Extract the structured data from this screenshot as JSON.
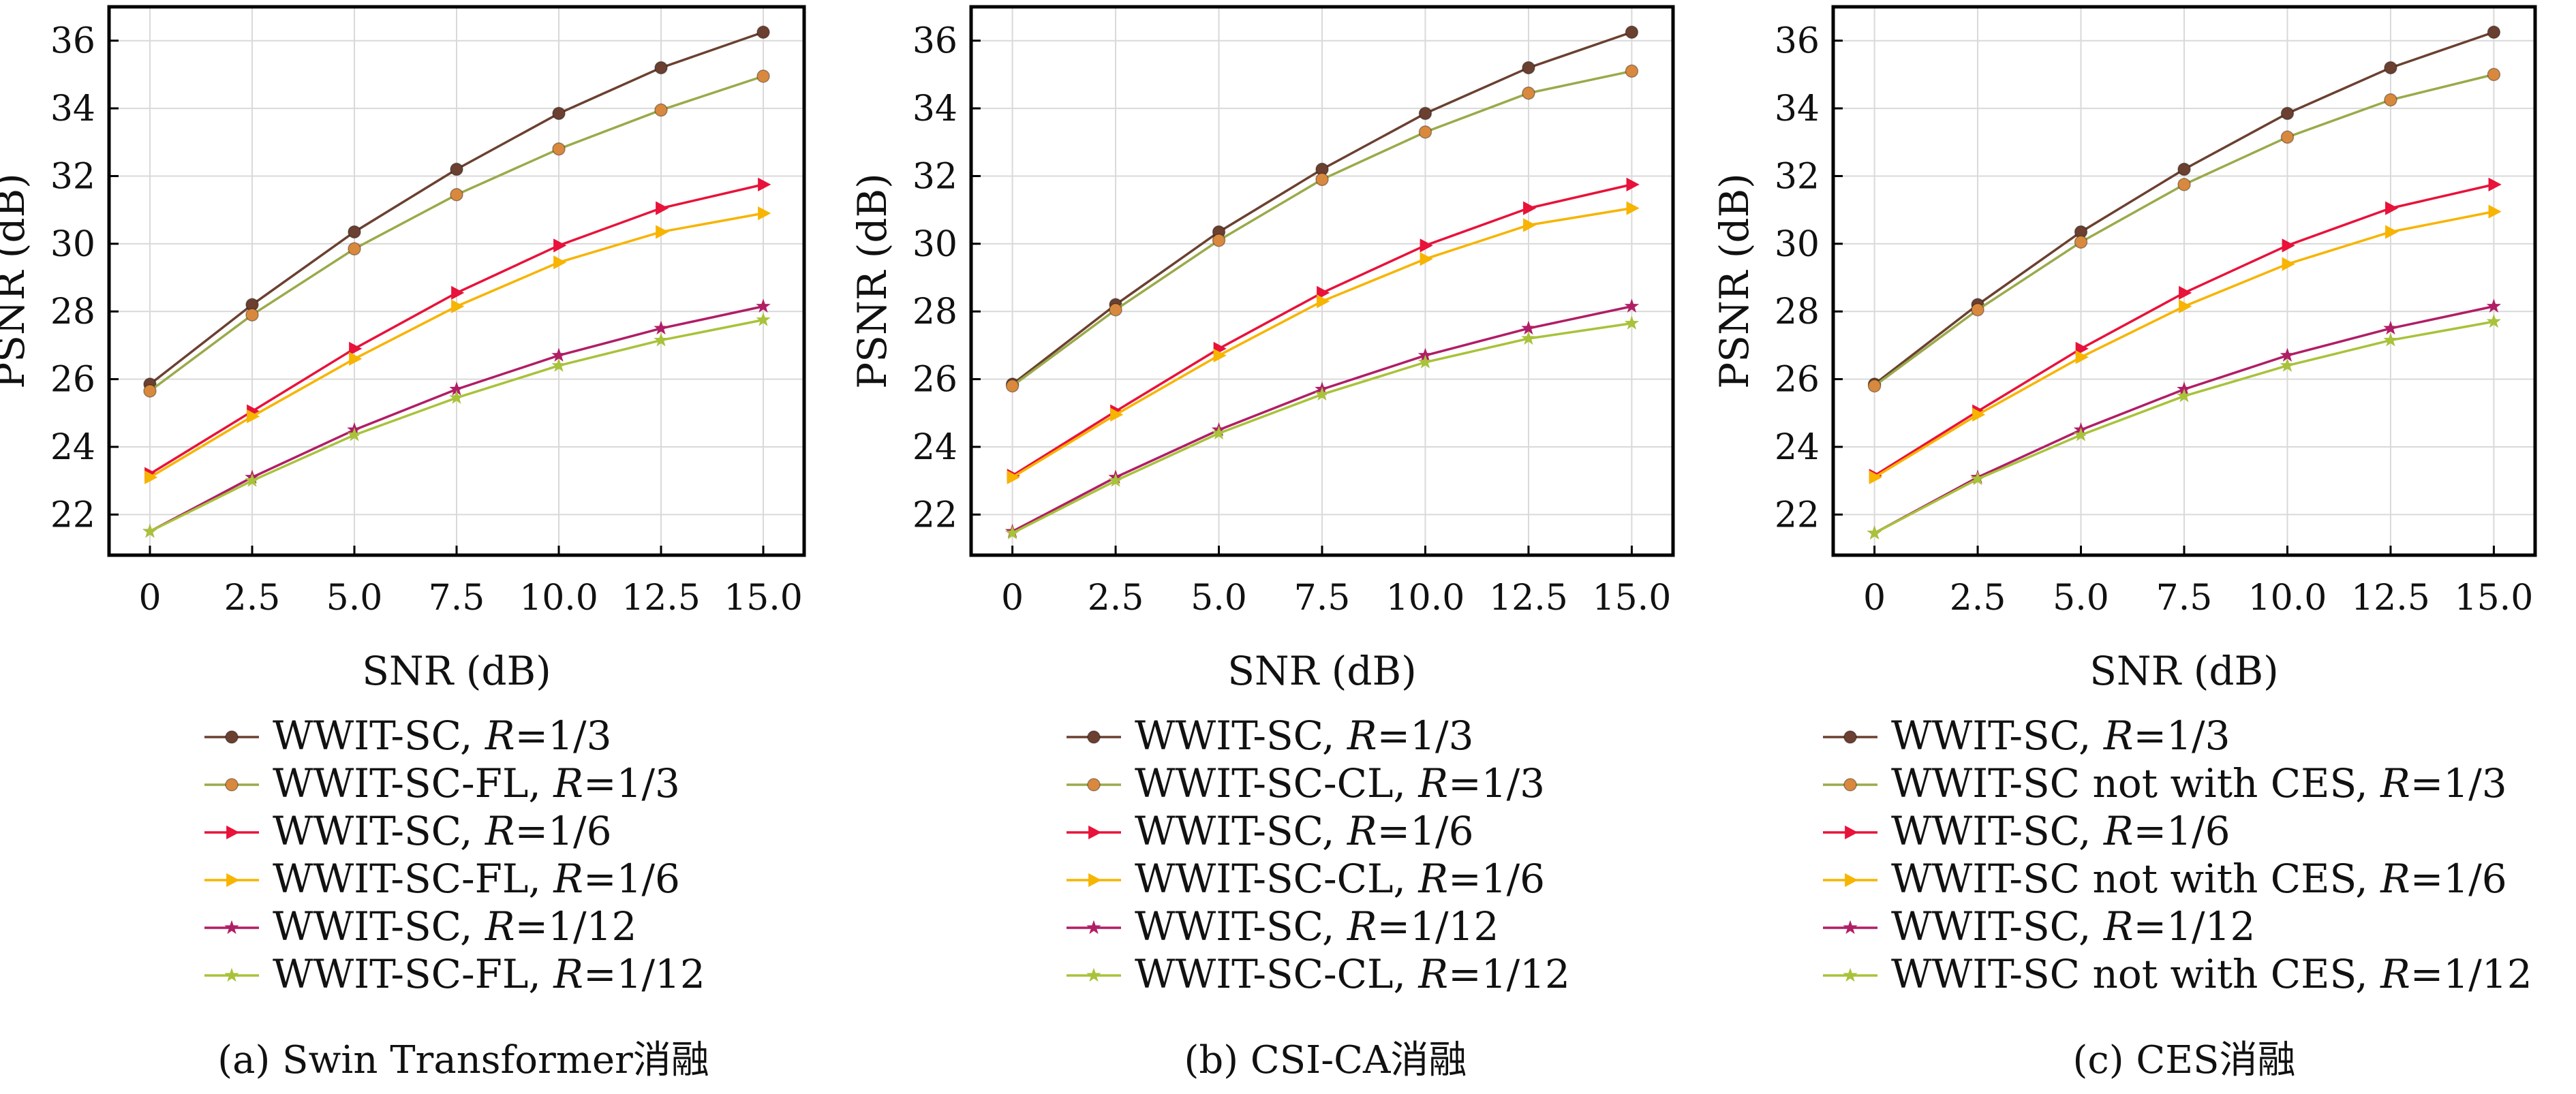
{
  "colors": {
    "r3_main": "#6b4030",
    "r3_alt": "#d9893e",
    "r3_alt_line": "#9aaa4a",
    "r6_main": "#e8123a",
    "r6_alt": "#f7b400",
    "r12_main": "#b01e66",
    "r12_alt": "#a8c23a"
  },
  "chart_data": [
    {
      "type": "line",
      "caption": "(a) Swin Transformer消融",
      "xlabel": "SNR (dB)",
      "ylabel": "PSNR (dB)",
      "xlim": [
        -1.0,
        16.0
      ],
      "ylim": [
        20.8,
        37.0
      ],
      "xticks": [
        0,
        2.5,
        5.0,
        7.5,
        10.0,
        12.5,
        15.0
      ],
      "xtick_labels": [
        "0",
        "2.5",
        "5.0",
        "7.5",
        "10.0",
        "12.5",
        "15.0"
      ],
      "yticks": [
        22,
        24,
        26,
        28,
        30,
        32,
        34,
        36
      ],
      "grid": true,
      "x": [
        0,
        2.5,
        5.0,
        7.5,
        10.0,
        12.5,
        15.0
      ],
      "series": [
        {
          "name": "WWIT-SC, R=1/3",
          "label_main": "WWIT-SC, ",
          "label_rate": "1/3",
          "marker": "circle",
          "color_key": "r3_main",
          "values": [
            25.85,
            28.2,
            30.35,
            32.2,
            33.85,
            35.2,
            36.25
          ]
        },
        {
          "name": "WWIT-SC-FL, R=1/3",
          "label_main": "WWIT-SC-FL, ",
          "label_rate": "1/3",
          "marker": "circle",
          "color_key": "r3_alt",
          "line_key": "r3_alt_line",
          "values": [
            25.65,
            27.9,
            29.85,
            31.45,
            32.8,
            33.95,
            34.95
          ]
        },
        {
          "name": "WWIT-SC, R=1/6",
          "label_main": "WWIT-SC, ",
          "label_rate": "1/6",
          "marker": "triangle",
          "color_key": "r6_main",
          "values": [
            23.2,
            25.05,
            26.9,
            28.55,
            29.95,
            31.05,
            31.75
          ]
        },
        {
          "name": "WWIT-SC-FL, R=1/6",
          "label_main": "WWIT-SC-FL, ",
          "label_rate": "1/6",
          "marker": "triangle",
          "color_key": "r6_alt",
          "values": [
            23.1,
            24.9,
            26.6,
            28.15,
            29.45,
            30.35,
            30.9
          ]
        },
        {
          "name": "WWIT-SC, R=1/12",
          "label_main": "WWIT-SC, ",
          "label_rate": "1/12",
          "marker": "star",
          "color_key": "r12_main",
          "values": [
            21.5,
            23.1,
            24.5,
            25.7,
            26.7,
            27.5,
            28.15
          ]
        },
        {
          "name": "WWIT-SC-FL, R=1/12",
          "label_main": "WWIT-SC-FL, ",
          "label_rate": "1/12",
          "marker": "star",
          "color_key": "r12_alt",
          "values": [
            21.5,
            23.0,
            24.35,
            25.45,
            26.4,
            27.15,
            27.75
          ]
        }
      ]
    },
    {
      "type": "line",
      "caption": "(b) CSI-CA消融",
      "xlabel": "SNR (dB)",
      "ylabel": "PSNR (dB)",
      "xlim": [
        -1.0,
        16.0
      ],
      "ylim": [
        20.8,
        37.0
      ],
      "xticks": [
        0,
        2.5,
        5.0,
        7.5,
        10.0,
        12.5,
        15.0
      ],
      "xtick_labels": [
        "0",
        "2.5",
        "5.0",
        "7.5",
        "10.0",
        "12.5",
        "15.0"
      ],
      "yticks": [
        22,
        24,
        26,
        28,
        30,
        32,
        34,
        36
      ],
      "grid": true,
      "x": [
        0,
        2.5,
        5.0,
        7.5,
        10.0,
        12.5,
        15.0
      ],
      "series": [
        {
          "name": "WWIT-SC, R=1/3",
          "label_main": "WWIT-SC, ",
          "label_rate": "1/3",
          "marker": "circle",
          "color_key": "r3_main",
          "values": [
            25.85,
            28.2,
            30.35,
            32.2,
            33.85,
            35.2,
            36.25
          ]
        },
        {
          "name": "WWIT-SC-CL, R=1/3",
          "label_main": "WWIT-SC-CL, ",
          "label_rate": "1/3",
          "marker": "circle",
          "color_key": "r3_alt",
          "line_key": "r3_alt_line",
          "values": [
            25.8,
            28.05,
            30.1,
            31.9,
            33.3,
            34.45,
            35.1
          ]
        },
        {
          "name": "WWIT-SC, R=1/6",
          "label_main": "WWIT-SC, ",
          "label_rate": "1/6",
          "marker": "triangle",
          "color_key": "r6_main",
          "values": [
            23.15,
            25.05,
            26.9,
            28.55,
            29.95,
            31.05,
            31.75
          ]
        },
        {
          "name": "WWIT-SC-CL, R=1/6",
          "label_main": "WWIT-SC-CL, ",
          "label_rate": "1/6",
          "marker": "triangle",
          "color_key": "r6_alt",
          "values": [
            23.1,
            24.95,
            26.7,
            28.3,
            29.55,
            30.55,
            31.05
          ]
        },
        {
          "name": "WWIT-SC, R=1/12",
          "label_main": "WWIT-SC, ",
          "label_rate": "1/12",
          "marker": "star",
          "color_key": "r12_main",
          "values": [
            21.5,
            23.1,
            24.5,
            25.7,
            26.7,
            27.5,
            28.15
          ]
        },
        {
          "name": "WWIT-SC-CL, R=1/12",
          "label_main": "WWIT-SC-CL, ",
          "label_rate": "1/12",
          "marker": "star",
          "color_key": "r12_alt",
          "values": [
            21.45,
            23.0,
            24.4,
            25.55,
            26.5,
            27.2,
            27.65
          ]
        }
      ]
    },
    {
      "type": "line",
      "caption": "(c) CES消融",
      "xlabel": "SNR (dB)",
      "ylabel": "PSNR (dB)",
      "xlim": [
        -1.0,
        16.0
      ],
      "ylim": [
        20.8,
        37.0
      ],
      "xticks": [
        0,
        2.5,
        5.0,
        7.5,
        10.0,
        12.5,
        15.0
      ],
      "xtick_labels": [
        "0",
        "2.5",
        "5.0",
        "7.5",
        "10.0",
        "12.5",
        "15.0"
      ],
      "yticks": [
        22,
        24,
        26,
        28,
        30,
        32,
        34,
        36
      ],
      "grid": true,
      "x": [
        0,
        2.5,
        5.0,
        7.5,
        10.0,
        12.5,
        15.0
      ],
      "series": [
        {
          "name": "WWIT-SC, R=1/3",
          "label_main": "WWIT-SC, ",
          "label_rate": "1/3",
          "marker": "circle",
          "color_key": "r3_main",
          "values": [
            25.85,
            28.2,
            30.35,
            32.2,
            33.85,
            35.2,
            36.25
          ]
        },
        {
          "name": "WWIT-SC not with CES, R=1/3",
          "label_main": "WWIT-SC not with CES, ",
          "label_rate": "1/3",
          "marker": "circle",
          "color_key": "r3_alt",
          "line_key": "r3_alt_line",
          "values": [
            25.8,
            28.05,
            30.05,
            31.75,
            33.15,
            34.25,
            35.0
          ]
        },
        {
          "name": "WWIT-SC, R=1/6",
          "label_main": "WWIT-SC, ",
          "label_rate": "1/6",
          "marker": "triangle",
          "color_key": "r6_main",
          "values": [
            23.15,
            25.05,
            26.9,
            28.55,
            29.95,
            31.05,
            31.75
          ]
        },
        {
          "name": "WWIT-SC not with CES, R=1/6",
          "label_main": "WWIT-SC not with CES, ",
          "label_rate": "1/6",
          "marker": "triangle",
          "color_key": "r6_alt",
          "values": [
            23.1,
            24.95,
            26.65,
            28.15,
            29.4,
            30.35,
            30.95
          ]
        },
        {
          "name": "WWIT-SC, R=1/12",
          "label_main": "WWIT-SC, ",
          "label_rate": "1/12",
          "marker": "star",
          "color_key": "r12_main",
          "values": [
            21.45,
            23.1,
            24.5,
            25.7,
            26.7,
            27.5,
            28.15
          ]
        },
        {
          "name": "WWIT-SC not with CES, R=1/12",
          "label_main": "WWIT-SC not with CES, ",
          "label_rate": "1/12",
          "marker": "star",
          "color_key": "r12_alt",
          "values": [
            21.45,
            23.05,
            24.35,
            25.5,
            26.4,
            27.15,
            27.7
          ]
        }
      ]
    }
  ]
}
